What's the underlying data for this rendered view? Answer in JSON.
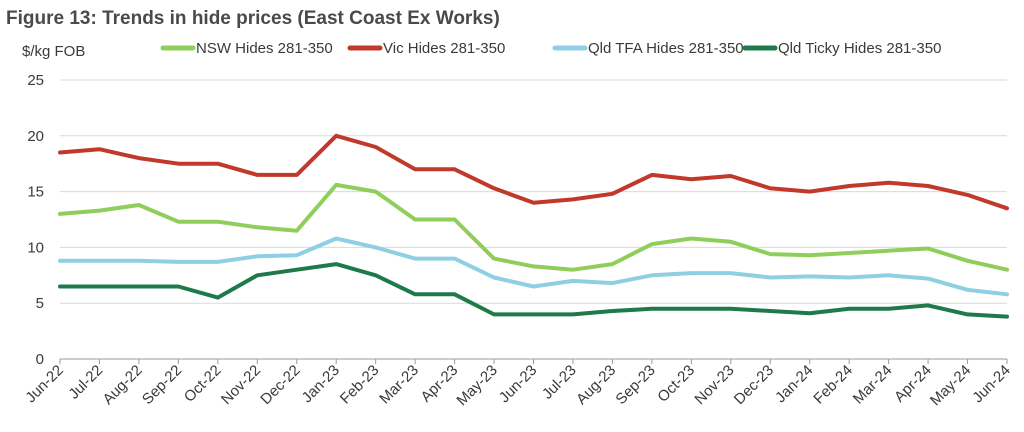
{
  "chart_data": {
    "type": "line",
    "title": "Figure 13: Trends in hide prices (East Coast Ex Works)",
    "ylabel": "$/kg FOB",
    "xlabel": "",
    "ylim": [
      0,
      25
    ],
    "yticks": [
      "0",
      "5",
      "10",
      "15",
      "20",
      "25"
    ],
    "grid": true,
    "legend_position": "top",
    "categories": [
      "Jun-22",
      "Jul-22",
      "Aug-22",
      "Sep-22",
      "Oct-22",
      "Nov-22",
      "Dec-22",
      "Jan-23",
      "Feb-23",
      "Mar-23",
      "Apr-23",
      "May-23",
      "Jun-23",
      "Jul-23",
      "Aug-23",
      "Sep-23",
      "Oct-23",
      "Nov-23",
      "Dec-23",
      "Jan-24",
      "Feb-24",
      "Mar-24",
      "Apr-24",
      "May-24",
      "Jun-24"
    ],
    "series": [
      {
        "name": "NSW Hides 281-350",
        "color": "#8fce5a",
        "values": [
          13.0,
          13.3,
          13.8,
          12.3,
          12.3,
          11.8,
          11.5,
          15.6,
          15.0,
          12.5,
          12.5,
          9.0,
          8.3,
          8.0,
          8.5,
          10.3,
          10.8,
          10.5,
          9.4,
          9.3,
          9.5,
          9.7,
          9.9,
          8.8,
          8.0
        ]
      },
      {
        "name": "Vic Hides 281-350",
        "color": "#c0392b",
        "values": [
          18.5,
          18.8,
          18.0,
          17.5,
          17.5,
          16.5,
          16.5,
          20.0,
          19.0,
          17.0,
          17.0,
          15.3,
          14.0,
          14.3,
          14.8,
          16.5,
          16.1,
          16.4,
          15.3,
          15.0,
          15.5,
          15.8,
          15.5,
          14.7,
          13.5
        ]
      },
      {
        "name": "Qld TFA Hides 281-350",
        "color": "#8ecfe3",
        "values": [
          8.8,
          8.8,
          8.8,
          8.7,
          8.7,
          9.2,
          9.3,
          10.8,
          10.0,
          9.0,
          9.0,
          7.3,
          6.5,
          7.0,
          6.8,
          7.5,
          7.7,
          7.7,
          7.3,
          7.4,
          7.3,
          7.5,
          7.2,
          6.2,
          5.8
        ]
      },
      {
        "name": "Qld Ticky Hides 281-350",
        "color": "#1f7a4a",
        "values": [
          6.5,
          6.5,
          6.5,
          6.5,
          5.5,
          7.5,
          8.0,
          8.5,
          7.5,
          5.8,
          5.8,
          4.0,
          4.0,
          4.0,
          4.3,
          4.5,
          4.5,
          4.5,
          4.3,
          4.1,
          4.5,
          4.5,
          4.8,
          4.0,
          3.8
        ]
      }
    ]
  }
}
